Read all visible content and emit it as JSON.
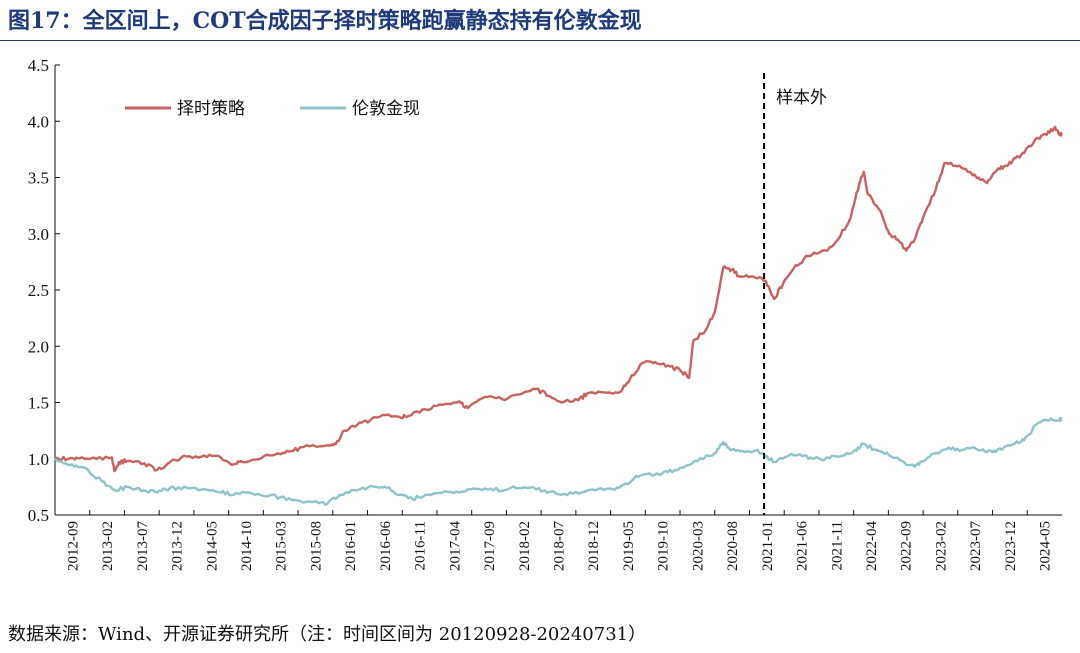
{
  "figure": {
    "title": "图17：全区间上，COT合成因子择时策略跑赢静态持有伦敦金现",
    "source": "数据来源：Wind、开源证券研究所（注：时间区间为 20120928-20240731）"
  },
  "colors": {
    "strategy": "#c8625f",
    "gold": "#8fc3ca",
    "axis": "#111111",
    "title": "#1f3a7a"
  },
  "chart_data": {
    "type": "line",
    "title": "全区间上，COT合成因子择时策略跑赢静态持有伦敦金现",
    "xlabel": "",
    "ylabel": "",
    "ylim": [
      0.5,
      4.5
    ],
    "yticks": [
      "0.5",
      "1.0",
      "1.5",
      "2.0",
      "2.5",
      "3.0",
      "3.5",
      "4.0",
      "4.5"
    ],
    "xlim": [
      2012.75,
      2024.58
    ],
    "x_tick_labels": [
      "2012-09",
      "2013-02",
      "2013-07",
      "2013-12",
      "2014-05",
      "2014-10",
      "2015-03",
      "2015-08",
      "2016-01",
      "2016-06",
      "2016-11",
      "2017-04",
      "2017-09",
      "2018-02",
      "2018-07",
      "2018-12",
      "2019-05",
      "2019-10",
      "2020-03",
      "2020-08",
      "2021-01",
      "2021-06",
      "2021-11",
      "2022-04",
      "2022-09",
      "2023-02",
      "2023-07",
      "2023-12",
      "2024-05"
    ],
    "legend_position": "top-left",
    "grid": false,
    "annotations": [
      {
        "type": "vertical_dashed_line",
        "x": 2021.08,
        "label": "样本外"
      }
    ],
    "series": [
      {
        "name": "择时策略",
        "points": [
          [
            2012.75,
            1.0
          ],
          [
            2012.9,
            1.0
          ],
          [
            2013.0,
            1.01
          ],
          [
            2013.2,
            1.01
          ],
          [
            2013.42,
            1.01
          ],
          [
            2013.45,
            0.89
          ],
          [
            2013.5,
            0.97
          ],
          [
            2013.6,
            0.98
          ],
          [
            2013.8,
            0.96
          ],
          [
            2013.95,
            0.9
          ],
          [
            2014.1,
            0.97
          ],
          [
            2014.3,
            1.02
          ],
          [
            2014.5,
            1.03
          ],
          [
            2014.7,
            1.01
          ],
          [
            2014.85,
            0.95
          ],
          [
            2014.95,
            0.97
          ],
          [
            2015.2,
            1.02
          ],
          [
            2015.4,
            1.04
          ],
          [
            2015.55,
            1.07
          ],
          [
            2015.7,
            1.12
          ],
          [
            2015.95,
            1.12
          ],
          [
            2016.05,
            1.13
          ],
          [
            2016.15,
            1.25
          ],
          [
            2016.3,
            1.3
          ],
          [
            2016.45,
            1.34
          ],
          [
            2016.6,
            1.39
          ],
          [
            2016.8,
            1.37
          ],
          [
            2016.9,
            1.38
          ],
          [
            2017.1,
            1.44
          ],
          [
            2017.3,
            1.48
          ],
          [
            2017.5,
            1.51
          ],
          [
            2017.6,
            1.45
          ],
          [
            2017.8,
            1.55
          ],
          [
            2018.0,
            1.53
          ],
          [
            2018.2,
            1.57
          ],
          [
            2018.4,
            1.62
          ],
          [
            2018.55,
            1.56
          ],
          [
            2018.7,
            1.5
          ],
          [
            2018.9,
            1.52
          ],
          [
            2019.0,
            1.58
          ],
          [
            2019.2,
            1.59
          ],
          [
            2019.4,
            1.6
          ],
          [
            2019.5,
            1.7
          ],
          [
            2019.65,
            1.85
          ],
          [
            2019.8,
            1.86
          ],
          [
            2019.95,
            1.83
          ],
          [
            2020.1,
            1.78
          ],
          [
            2020.2,
            1.72
          ],
          [
            2020.25,
            2.05
          ],
          [
            2020.4,
            2.15
          ],
          [
            2020.5,
            2.3
          ],
          [
            2020.6,
            2.7
          ],
          [
            2020.7,
            2.68
          ],
          [
            2020.8,
            2.62
          ],
          [
            2020.95,
            2.62
          ],
          [
            2021.1,
            2.58
          ],
          [
            2021.2,
            2.42
          ],
          [
            2021.3,
            2.55
          ],
          [
            2021.45,
            2.72
          ],
          [
            2021.6,
            2.8
          ],
          [
            2021.8,
            2.85
          ],
          [
            2021.95,
            2.95
          ],
          [
            2022.1,
            3.15
          ],
          [
            2022.2,
            3.45
          ],
          [
            2022.25,
            3.55
          ],
          [
            2022.3,
            3.35
          ],
          [
            2022.45,
            3.2
          ],
          [
            2022.55,
            3.0
          ],
          [
            2022.65,
            2.95
          ],
          [
            2022.75,
            2.85
          ],
          [
            2022.85,
            2.95
          ],
          [
            2022.95,
            3.15
          ],
          [
            2023.1,
            3.4
          ],
          [
            2023.2,
            3.63
          ],
          [
            2023.35,
            3.6
          ],
          [
            2023.5,
            3.55
          ],
          [
            2023.6,
            3.5
          ],
          [
            2023.7,
            3.45
          ],
          [
            2023.8,
            3.55
          ],
          [
            2023.9,
            3.6
          ],
          [
            2024.0,
            3.65
          ],
          [
            2024.1,
            3.7
          ],
          [
            2024.2,
            3.78
          ],
          [
            2024.3,
            3.85
          ],
          [
            2024.4,
            3.88
          ],
          [
            2024.5,
            3.95
          ],
          [
            2024.55,
            3.88
          ],
          [
            2024.58,
            3.9
          ]
        ]
      },
      {
        "name": "伦敦金现",
        "points": [
          [
            2012.75,
            1.0
          ],
          [
            2012.95,
            0.95
          ],
          [
            2013.1,
            0.92
          ],
          [
            2013.3,
            0.8
          ],
          [
            2013.45,
            0.72
          ],
          [
            2013.6,
            0.75
          ],
          [
            2013.8,
            0.72
          ],
          [
            2013.95,
            0.7
          ],
          [
            2014.1,
            0.74
          ],
          [
            2014.3,
            0.74
          ],
          [
            2014.5,
            0.73
          ],
          [
            2014.7,
            0.7
          ],
          [
            2014.85,
            0.68
          ],
          [
            2015.0,
            0.7
          ],
          [
            2015.2,
            0.67
          ],
          [
            2015.4,
            0.66
          ],
          [
            2015.6,
            0.63
          ],
          [
            2015.8,
            0.62
          ],
          [
            2015.95,
            0.6
          ],
          [
            2016.1,
            0.68
          ],
          [
            2016.3,
            0.72
          ],
          [
            2016.5,
            0.75
          ],
          [
            2016.65,
            0.74
          ],
          [
            2016.8,
            0.68
          ],
          [
            2016.95,
            0.64
          ],
          [
            2017.1,
            0.68
          ],
          [
            2017.3,
            0.7
          ],
          [
            2017.5,
            0.7
          ],
          [
            2017.7,
            0.73
          ],
          [
            2017.9,
            0.72
          ],
          [
            2018.1,
            0.74
          ],
          [
            2018.3,
            0.74
          ],
          [
            2018.5,
            0.72
          ],
          [
            2018.7,
            0.68
          ],
          [
            2018.9,
            0.69
          ],
          [
            2019.1,
            0.72
          ],
          [
            2019.3,
            0.73
          ],
          [
            2019.45,
            0.78
          ],
          [
            2019.6,
            0.84
          ],
          [
            2019.8,
            0.86
          ],
          [
            2019.95,
            0.88
          ],
          [
            2020.1,
            0.92
          ],
          [
            2020.3,
            0.98
          ],
          [
            2020.5,
            1.05
          ],
          [
            2020.6,
            1.15
          ],
          [
            2020.7,
            1.08
          ],
          [
            2020.85,
            1.06
          ],
          [
            2021.0,
            1.08
          ],
          [
            2021.1,
            1.02
          ],
          [
            2021.2,
            0.97
          ],
          [
            2021.35,
            1.02
          ],
          [
            2021.5,
            1.04
          ],
          [
            2021.65,
            1.0
          ],
          [
            2021.8,
            1.0
          ],
          [
            2021.95,
            1.02
          ],
          [
            2022.15,
            1.08
          ],
          [
            2022.25,
            1.13
          ],
          [
            2022.4,
            1.08
          ],
          [
            2022.55,
            1.03
          ],
          [
            2022.7,
            0.98
          ],
          [
            2022.85,
            0.93
          ],
          [
            2022.95,
            0.98
          ],
          [
            2023.1,
            1.05
          ],
          [
            2023.25,
            1.1
          ],
          [
            2023.4,
            1.08
          ],
          [
            2023.55,
            1.1
          ],
          [
            2023.7,
            1.06
          ],
          [
            2023.8,
            1.06
          ],
          [
            2023.95,
            1.12
          ],
          [
            2024.1,
            1.15
          ],
          [
            2024.2,
            1.22
          ],
          [
            2024.3,
            1.32
          ],
          [
            2024.45,
            1.36
          ],
          [
            2024.55,
            1.34
          ],
          [
            2024.58,
            1.36
          ]
        ]
      }
    ]
  }
}
